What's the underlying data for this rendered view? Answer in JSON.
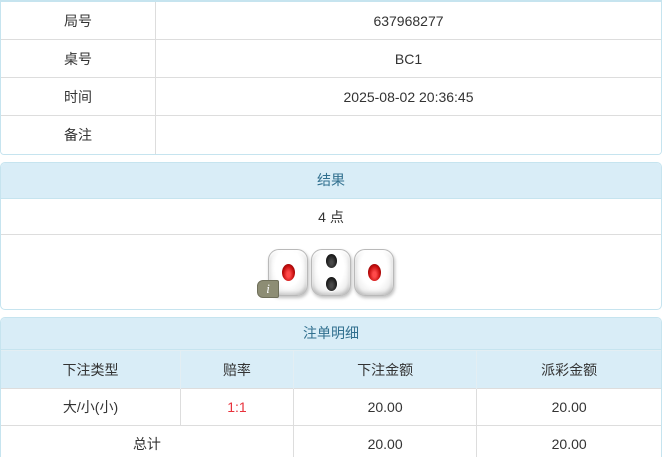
{
  "info_table": {
    "rows": [
      {
        "label": "局号",
        "value": "637968277"
      },
      {
        "label": "桌号",
        "value": "BC1"
      },
      {
        "label": "时间",
        "value": "2025-08-02 20:36:45"
      },
      {
        "label": "备注",
        "value": ""
      }
    ]
  },
  "result_panel": {
    "title": "结果",
    "points": "4 点",
    "dice": [
      {
        "value": 1,
        "color": "red"
      },
      {
        "value": 2,
        "color": "black"
      },
      {
        "value": 1,
        "color": "red"
      }
    ],
    "info_badge": "i"
  },
  "bets_panel": {
    "title": "注单明细",
    "columns": [
      "下注类型",
      "赔率",
      "下注金额",
      "派彩金额"
    ],
    "rows": [
      {
        "type": "大/小(小)",
        "odds": "1:1",
        "bet": "20.00",
        "payout": "20.00"
      }
    ],
    "total": {
      "label": "总计",
      "bet": "20.00",
      "payout": "20.00"
    }
  },
  "colors": {
    "panel_border": "#c6e4ef",
    "heading_bg": "#d9edf7",
    "heading_text": "#31708f",
    "divider": "#dddddd",
    "body_text": "#333333",
    "odds_red": "#e8323c"
  }
}
